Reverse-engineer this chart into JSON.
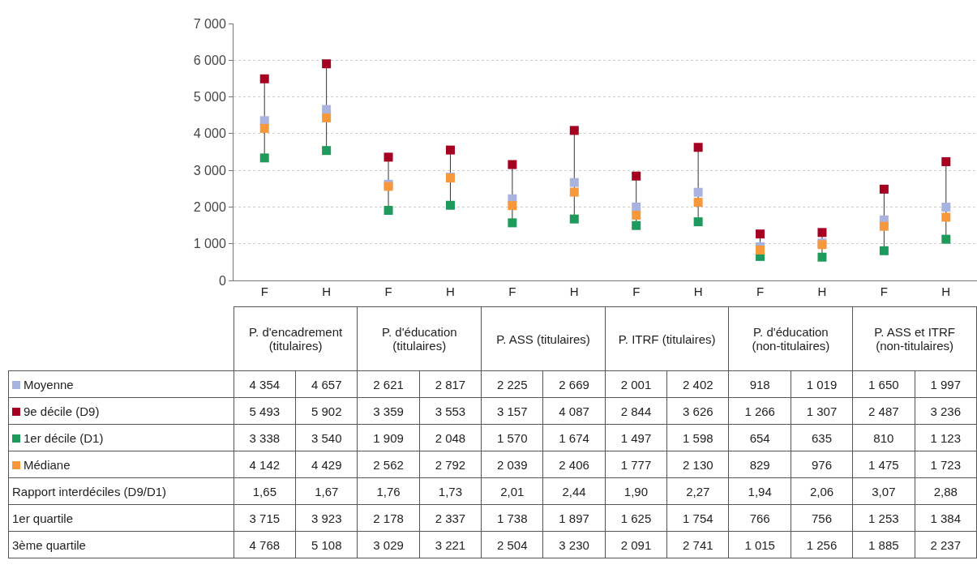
{
  "chart_data": {
    "type": "scatter",
    "categories": [
      "F",
      "H",
      "F",
      "H",
      "F",
      "H",
      "F",
      "H",
      "F",
      "H",
      "F",
      "H"
    ],
    "annotations": [
      "P. d'encadrement (titulaires)",
      "P. d'éducation (titulaires)",
      "P. ASS (titulaires)",
      "P. ITRF (titulaires)",
      "P. d'éducation (non-titulaires)",
      "P. ASS et ITRF (non-titulaires)"
    ],
    "series": [
      {
        "name": "Moyenne",
        "color": "#a9b3e0",
        "values": [
          4354,
          4657,
          2621,
          2817,
          2225,
          2669,
          2001,
          2402,
          918,
          1019,
          1650,
          1997
        ],
        "value_labels": [
          "4 354",
          "4 657",
          "2 621",
          "2 817",
          "2 225",
          "2 669",
          "2 001",
          "2 402",
          "918",
          "1 019",
          "1 650",
          "1 997"
        ]
      },
      {
        "name": "9e décile (D9)",
        "color": "#a50021",
        "values": [
          5493,
          5902,
          3359,
          3553,
          3157,
          4087,
          2844,
          3626,
          1266,
          1307,
          2487,
          3236
        ],
        "value_labels": [
          "5 493",
          "5 902",
          "3 359",
          "3 553",
          "3 157",
          "4 087",
          "2 844",
          "3 626",
          "1 266",
          "1 307",
          "2 487",
          "3 236"
        ]
      },
      {
        "name": "1er décile (D1)",
        "color": "#1e9a5c",
        "values": [
          3338,
          3540,
          1909,
          2048,
          1570,
          1674,
          1497,
          1598,
          654,
          635,
          810,
          1123
        ],
        "value_labels": [
          "3 338",
          "3 540",
          "1 909",
          "2 048",
          "1 570",
          "1 674",
          "1 497",
          "1 598",
          "654",
          "635",
          "810",
          "1 123"
        ]
      },
      {
        "name": "Médiane",
        "color": "#f7993b",
        "values": [
          4142,
          4429,
          2562,
          2792,
          2039,
          2406,
          1777,
          2130,
          829,
          976,
          1475,
          1723
        ],
        "value_labels": [
          "4 142",
          "4 429",
          "2 562",
          "2 792",
          "2 039",
          "2 406",
          "1 777",
          "2 130",
          "829",
          "976",
          "1 475",
          "1 723"
        ]
      },
      {
        "name": "Rapport interdéciles (D9/D1)",
        "values": [
          null,
          null,
          null,
          null,
          null,
          null,
          null,
          null,
          null,
          null,
          null,
          null
        ],
        "value_labels": [
          "1,65",
          "1,67",
          "1,76",
          "1,73",
          "2,01",
          "2,44",
          "1,90",
          "2,27",
          "1,94",
          "2,06",
          "3,07",
          "2,88"
        ]
      },
      {
        "name": "1er quartile",
        "values": [
          null,
          null,
          null,
          null,
          null,
          null,
          null,
          null,
          null,
          null,
          null,
          null
        ],
        "value_labels": [
          "3 715",
          "3 923",
          "2 178",
          "2 337",
          "1 738",
          "1 897",
          "1 625",
          "1 754",
          "766",
          "756",
          "1 253",
          "1 384"
        ]
      },
      {
        "name": "3ème quartile",
        "values": [
          null,
          null,
          null,
          null,
          null,
          null,
          null,
          null,
          null,
          null,
          null,
          null
        ],
        "value_labels": [
          "4 768",
          "5 108",
          "3 029",
          "3 221",
          "2 504",
          "3 230",
          "2 091",
          "2 741",
          "1 015",
          "1 256",
          "1 885",
          "2 237"
        ]
      }
    ],
    "ylim": [
      0,
      7000
    ],
    "yticks": [
      0,
      {
        "value": 1000,
        "label": "1 000"
      },
      {
        "value": 2000,
        "label": "2 000"
      },
      {
        "value": 3000,
        "label": "3 000"
      },
      {
        "value": 4000,
        "label": "4 000"
      },
      {
        "value": 5000,
        "label": "5 000"
      },
      {
        "value": 6000,
        "label": "6 000"
      },
      {
        "value": 7000,
        "label": "7 000"
      }
    ],
    "grid": "y",
    "marker": "square",
    "legend": "bottom left"
  }
}
